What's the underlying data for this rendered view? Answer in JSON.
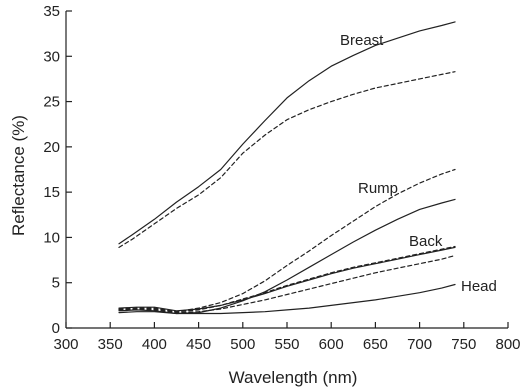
{
  "chart_data": {
    "type": "line",
    "title": "",
    "xlabel": "Wavelength (nm)",
    "ylabel": "Reflectance (%)",
    "xlim": [
      300,
      800
    ],
    "ylim": [
      0,
      35
    ],
    "x_ticks": [
      300,
      350,
      400,
      450,
      500,
      550,
      600,
      650,
      700,
      750,
      800
    ],
    "y_ticks": [
      0,
      5,
      10,
      15,
      20,
      25,
      30,
      35
    ],
    "grid": false,
    "legend": "none",
    "annotations": [
      "Breast",
      "Rump",
      "Back",
      "Head"
    ],
    "series": [
      {
        "label_ref": 0,
        "style": "solid",
        "x": [
          360,
          375,
          400,
          425,
          450,
          475,
          500,
          525,
          550,
          575,
          600,
          625,
          650,
          675,
          700,
          725,
          740
        ],
        "y": [
          9.3,
          10.3,
          12.0,
          13.9,
          15.6,
          17.5,
          20.3,
          22.9,
          25.4,
          27.3,
          28.9,
          30.1,
          31.2,
          32.0,
          32.8,
          33.4,
          33.8
        ]
      },
      {
        "label_ref": 0,
        "style": "dashed",
        "x": [
          360,
          375,
          400,
          425,
          450,
          475,
          500,
          525,
          550,
          575,
          600,
          625,
          650,
          675,
          700,
          725,
          740
        ],
        "y": [
          8.9,
          9.8,
          11.5,
          13.2,
          14.7,
          16.6,
          19.3,
          21.3,
          23.0,
          24.1,
          25.0,
          25.8,
          26.5,
          27.0,
          27.5,
          28.0,
          28.3
        ]
      },
      {
        "label_ref": 1,
        "style": "dashed",
        "x": [
          360,
          380,
          400,
          425,
          450,
          475,
          500,
          525,
          550,
          575,
          600,
          625,
          650,
          675,
          700,
          725,
          740
        ],
        "y": [
          2.1,
          2.2,
          2.2,
          1.8,
          2.2,
          2.8,
          3.8,
          5.2,
          6.9,
          8.5,
          10.2,
          11.8,
          13.4,
          14.8,
          16.0,
          17.0,
          17.5
        ]
      },
      {
        "label_ref": 1,
        "style": "solid",
        "x": [
          360,
          380,
          400,
          425,
          450,
          475,
          500,
          525,
          550,
          575,
          600,
          625,
          650,
          675,
          700,
          725,
          740
        ],
        "y": [
          1.9,
          2.0,
          1.9,
          1.6,
          1.7,
          2.2,
          3.0,
          4.0,
          5.3,
          6.7,
          8.1,
          9.5,
          10.8,
          12.0,
          13.1,
          13.8,
          14.2
        ]
      },
      {
        "label_ref": 2,
        "style": "solid",
        "x": [
          360,
          380,
          400,
          425,
          450,
          475,
          500,
          525,
          550,
          575,
          600,
          625,
          650,
          675,
          700,
          725,
          740
        ],
        "y": [
          2.2,
          2.3,
          2.3,
          1.9,
          2.1,
          2.5,
          3.1,
          3.8,
          4.6,
          5.3,
          6.0,
          6.6,
          7.1,
          7.6,
          8.1,
          8.6,
          8.9
        ]
      },
      {
        "label_ref": 2,
        "style": "dashed",
        "x": [
          360,
          380,
          400,
          425,
          450,
          475,
          500,
          525,
          550,
          575,
          600,
          625,
          650,
          675,
          700,
          725,
          740
        ],
        "y": [
          2.0,
          2.1,
          2.1,
          1.8,
          2.0,
          2.5,
          3.2,
          3.9,
          4.7,
          5.4,
          6.1,
          6.7,
          7.2,
          7.7,
          8.2,
          8.7,
          9.0
        ]
      },
      {
        "label_ref": 3,
        "style": "dashed",
        "x": [
          360,
          380,
          400,
          425,
          450,
          475,
          500,
          525,
          550,
          575,
          600,
          625,
          650,
          675,
          700,
          725,
          740
        ],
        "y": [
          2.0,
          2.0,
          2.0,
          1.7,
          1.8,
          2.1,
          2.6,
          3.1,
          3.7,
          4.3,
          4.9,
          5.5,
          6.1,
          6.6,
          7.1,
          7.6,
          8.0
        ]
      },
      {
        "label_ref": 3,
        "style": "solid",
        "x": [
          360,
          380,
          400,
          425,
          450,
          475,
          500,
          525,
          550,
          575,
          600,
          625,
          650,
          675,
          700,
          725,
          740
        ],
        "y": [
          1.7,
          1.8,
          1.8,
          1.6,
          1.6,
          1.6,
          1.7,
          1.8,
          2.0,
          2.2,
          2.5,
          2.8,
          3.1,
          3.5,
          3.9,
          4.4,
          4.8
        ]
      }
    ],
    "colors": {
      "ink": "#222222",
      "background": "#ffffff"
    }
  }
}
